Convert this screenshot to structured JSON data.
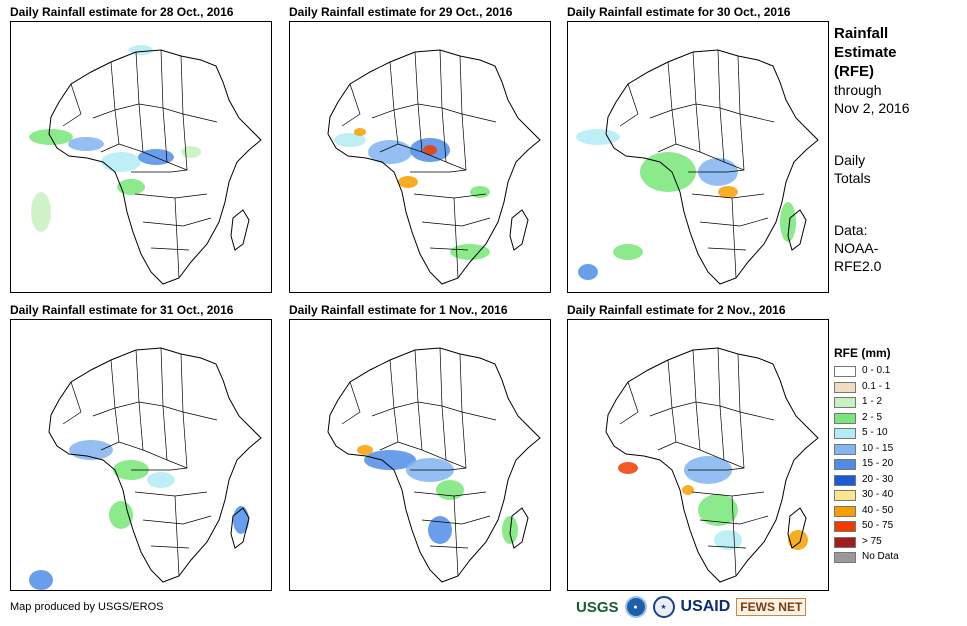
{
  "panels": [
    {
      "title": "Daily Rainfall estimate for 28 Oct., 2016"
    },
    {
      "title": "Daily Rainfall estimate for 29 Oct., 2016"
    },
    {
      "title": "Daily Rainfall estimate for 30 Oct., 2016"
    },
    {
      "title": "Daily Rainfall estimate for 31 Oct., 2016"
    },
    {
      "title": "Daily Rainfall estimate for 1 Nov., 2016"
    },
    {
      "title": "Daily Rainfall estimate for 2 Nov., 2016"
    }
  ],
  "side": {
    "title_line1": "Rainfall",
    "title_line2": "Estimate",
    "title_line3": "(RFE)",
    "through": "through",
    "date": "Nov 2, 2016",
    "daily": "Daily",
    "totals": "Totals",
    "data_label": "Data:",
    "source1": "NOAA-",
    "source2": "RFE2.0"
  },
  "legend": {
    "title": "RFE (mm)",
    "items": [
      {
        "label": "0 - 0.1",
        "color": "#ffffff"
      },
      {
        "label": "0.1 - 1",
        "color": "#f0dcc0"
      },
      {
        "label": "1 - 2",
        "color": "#c8f0c0"
      },
      {
        "label": "2 - 5",
        "color": "#78e678"
      },
      {
        "label": "5 - 10",
        "color": "#b4ecf4"
      },
      {
        "label": "10 - 15",
        "color": "#82b4f0"
      },
      {
        "label": "15 - 20",
        "color": "#508ce6"
      },
      {
        "label": "20 - 30",
        "color": "#1e5ad2"
      },
      {
        "label": "30 - 40",
        "color": "#fae68c"
      },
      {
        "label": "40 - 50",
        "color": "#f5a000"
      },
      {
        "label": "50 - 75",
        "color": "#f03c00"
      },
      {
        "label": "> 75",
        "color": "#a01e1e"
      },
      {
        "label": "No Data",
        "color": "#999999"
      }
    ]
  },
  "credit": "Map produced by USGS/EROS",
  "logos": {
    "usgs": "USGS",
    "usaid": "USAID",
    "fews": "FEWS NET"
  }
}
